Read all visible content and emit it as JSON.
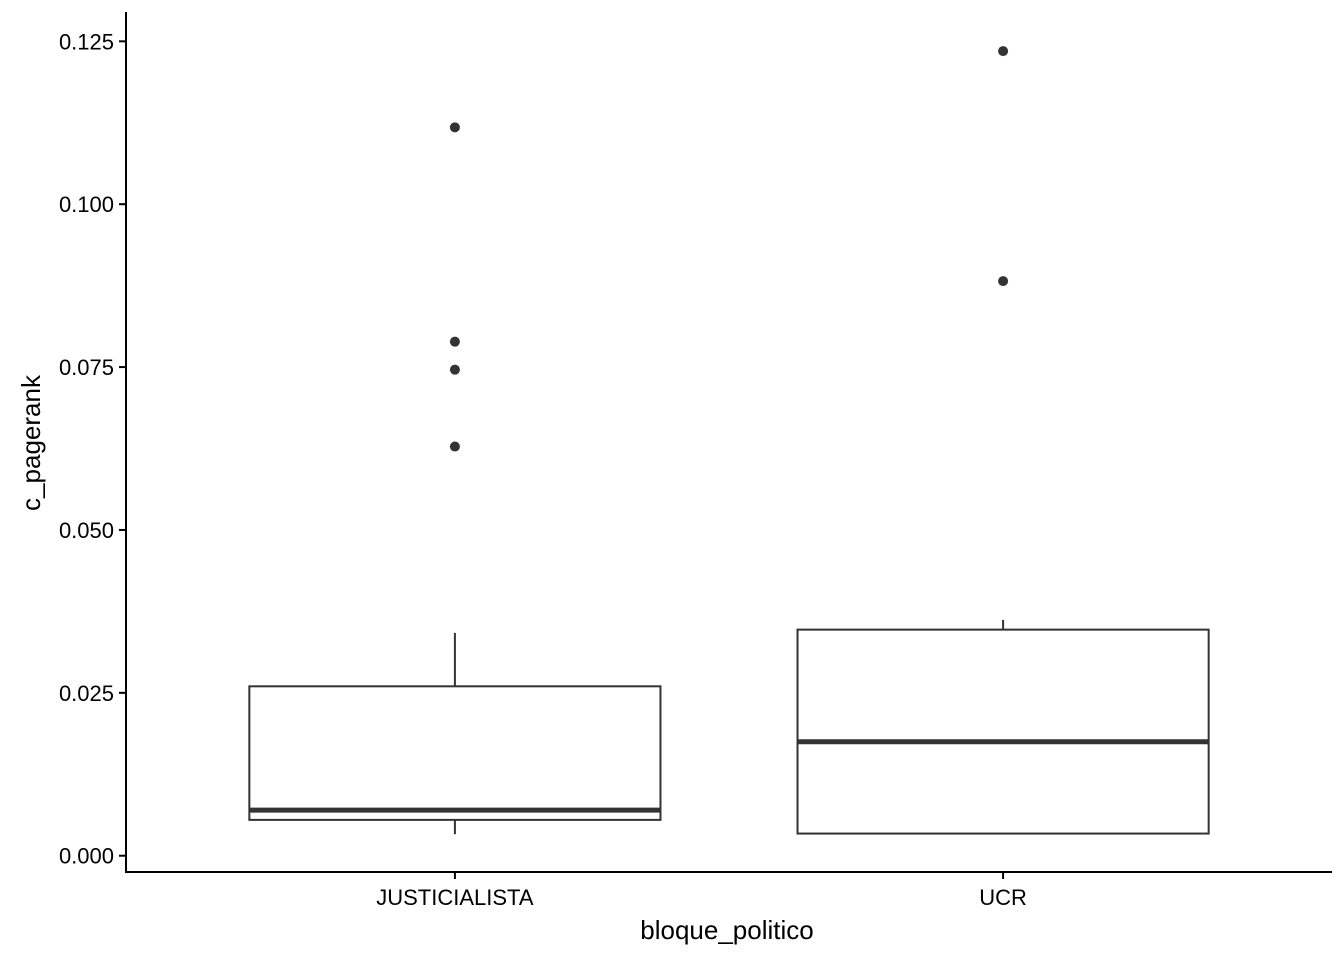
{
  "chart_data": {
    "type": "boxplot",
    "title": "",
    "xlabel": "bloque_politico",
    "ylabel": "c_pagerank",
    "categories": [
      "JUSTICIALISTA",
      "UCR"
    ],
    "ylim": [
      -0.0025,
      0.1295
    ],
    "yticks": [
      0.0,
      0.025,
      0.05,
      0.075,
      0.1,
      0.125
    ],
    "ytick_labels": [
      "0.000",
      "0.025",
      "0.050",
      "0.075",
      "0.100",
      "0.125"
    ],
    "grid": false,
    "legend": "none",
    "boxes": [
      {
        "category": "JUSTICIALISTA",
        "whisker_low": 0.0033,
        "q1": 0.0055,
        "median": 0.007,
        "q3": 0.026,
        "whisker_high": 0.0342,
        "outliers": [
          0.0628,
          0.0746,
          0.0789,
          0.1118
        ]
      },
      {
        "category": "UCR",
        "whisker_low": 0.0034,
        "q1": 0.0034,
        "median": 0.0175,
        "q3": 0.0347,
        "whisker_high": 0.0362,
        "outliers": [
          0.0882,
          0.1235
        ]
      }
    ],
    "colors": {
      "box_line": "#333333",
      "outlier": "#333333",
      "axis": "#000000",
      "background": "#ffffff"
    }
  }
}
